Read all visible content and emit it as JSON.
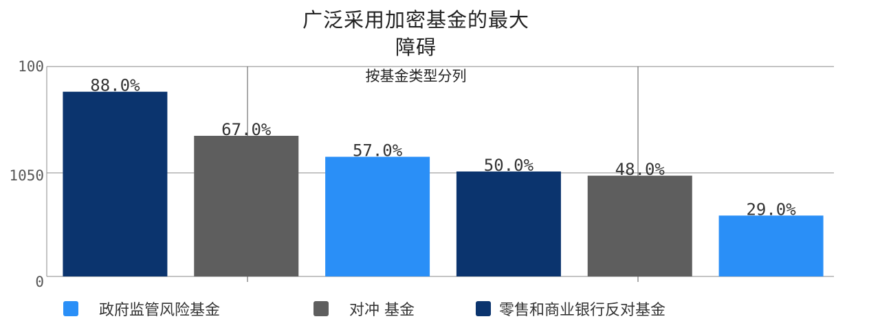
{
  "chart_data": {
    "type": "bar",
    "title_line1": "广泛采用加密基金的最大",
    "title_line2": "障碍",
    "subtitle": "按基金类型分列",
    "y_tick_labels": [
      "100",
      "1050",
      "0"
    ],
    "ylim": [
      0,
      100
    ],
    "grid": true,
    "value_suffix": "%",
    "bars": [
      {
        "value": 88.0,
        "label": "88.0%",
        "series": 2
      },
      {
        "value": 67.0,
        "label": "67.0%",
        "series": 1
      },
      {
        "value": 57.0,
        "label": "57.0%",
        "series": 0
      },
      {
        "value": 50.0,
        "label": "50.0%",
        "series": 2
      },
      {
        "value": 48.0,
        "label": "48.0%",
        "series": 1
      },
      {
        "value": 29.0,
        "label": "29.0%",
        "series": 0
      }
    ],
    "series": [
      {
        "name": "政府监管风险基金",
        "color": "#2a8ff7"
      },
      {
        "name": "对冲 基金",
        "color": "#5e5e5e"
      },
      {
        "name": "零售和商业银行反对基金",
        "color": "#0b346e"
      }
    ],
    "legend_position": "bottom"
  }
}
